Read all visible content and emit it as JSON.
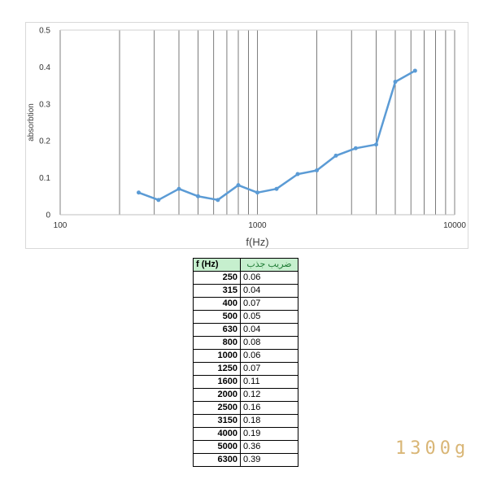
{
  "chart_data": {
    "type": "line",
    "xlabel": "f(Hz)",
    "ylabel": "absorbtion",
    "x_scale": "log",
    "xlim": [
      100,
      10000
    ],
    "ylim": [
      0,
      0.5
    ],
    "x_ticks": [
      "100",
      "1000",
      "10000"
    ],
    "y_ticks": [
      "0",
      "0.1",
      "0.2",
      "0.3",
      "0.4",
      "0.5"
    ],
    "grid": "vertical",
    "series_color": "#5b9bd5",
    "x": [
      250,
      315,
      400,
      500,
      630,
      800,
      1000,
      1250,
      1600,
      2000,
      2500,
      3150,
      4000,
      5000,
      6300
    ],
    "y": [
      0.06,
      0.04,
      0.07,
      0.05,
      0.04,
      0.08,
      0.06,
      0.07,
      0.11,
      0.12,
      0.16,
      0.18,
      0.19,
      0.36,
      0.39
    ]
  },
  "table": {
    "header_freq": "f (Hz)",
    "header_abs": "ضریب جذب",
    "header_bg": "#c6efce",
    "header_abs_color": "#1e7b34",
    "rows": [
      [
        "250",
        "0.06"
      ],
      [
        "315",
        "0.04"
      ],
      [
        "400",
        "0.07"
      ],
      [
        "500",
        "0.05"
      ],
      [
        "630",
        "0.04"
      ],
      [
        "800",
        "0.08"
      ],
      [
        "1000",
        "0.06"
      ],
      [
        "1250",
        "0.07"
      ],
      [
        "1600",
        "0.11"
      ],
      [
        "2000",
        "0.12"
      ],
      [
        "2500",
        "0.16"
      ],
      [
        "3150",
        "0.18"
      ],
      [
        "4000",
        "0.19"
      ],
      [
        "5000",
        "0.36"
      ],
      [
        "6300",
        "0.39"
      ]
    ]
  },
  "watermark": {
    "text": "1300g",
    "color": "#d9b676"
  }
}
